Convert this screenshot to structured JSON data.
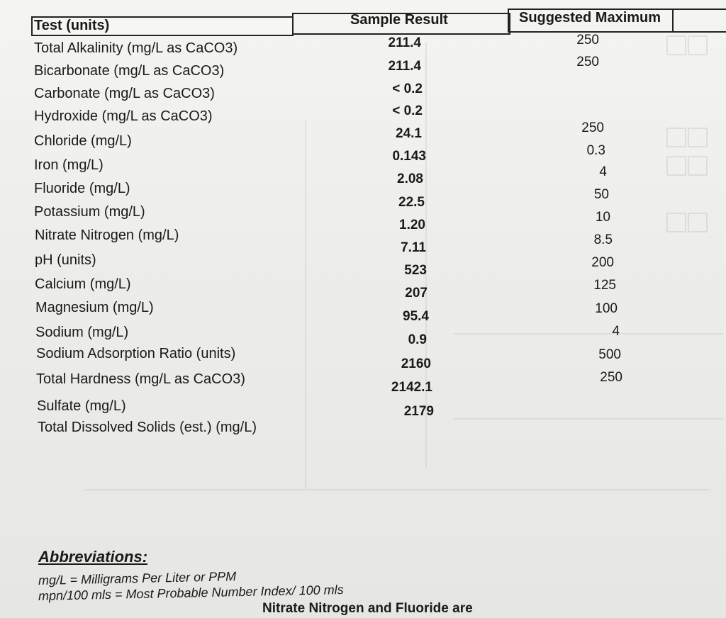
{
  "header": {
    "test": "Test (units)",
    "sample": "Sample Result",
    "maximum": "Suggested Maximum"
  },
  "rows": [
    {
      "name": "Total Alkalinity (mg/L as CaCO3)",
      "result": "211.4",
      "max": "250"
    },
    {
      "name": "Bicarbonate (mg/L as CaCO3)",
      "result": "211.4",
      "max": "250"
    },
    {
      "name": "Carbonate (mg/L as CaCO3)",
      "result": "< 0.2",
      "max": ""
    },
    {
      "name": "Hydroxide (mg/L as CaCO3)",
      "result": "< 0.2",
      "max": ""
    },
    {
      "name": "Chloride (mg/L)",
      "result": "24.1",
      "max": "250"
    },
    {
      "name": "Iron (mg/L)",
      "result": "0.143",
      "max": "0.3"
    },
    {
      "name": "Fluoride (mg/L)",
      "result": "2.08",
      "max": "4"
    },
    {
      "name": "Potassium (mg/L)",
      "result": "22.5",
      "max": "50"
    },
    {
      "name": "Nitrate Nitrogen (mg/L)",
      "result": "1.20",
      "max": "10"
    },
    {
      "name": "pH (units)",
      "result": "7.11",
      "max": "8.5"
    },
    {
      "name": "Calcium (mg/L)",
      "result": "523",
      "max": "200"
    },
    {
      "name": "Magnesium (mg/L)",
      "result": "207",
      "max": "125"
    },
    {
      "name": "Sodium (mg/L)",
      "result": "95.4",
      "max": "100"
    },
    {
      "name": "Sodium Adsorption Ratio (units)",
      "result": "0.9",
      "max": "4"
    },
    {
      "name": "Total Hardness (mg/L as CaCO3)",
      "result": "2160",
      "max": "500"
    },
    {
      "name": "Sulfate (mg/L)",
      "result": "2142.1",
      "max": "250"
    },
    {
      "name": "Total Dissolved Solids (est.) (mg/L)",
      "result": "2179",
      "max": ""
    }
  ],
  "abbreviations": {
    "title": "Abbreviations:",
    "line1": "mg/L = Milligrams Per Liter or PPM",
    "line2": "mpn/100 mls = Most Probable Number Index/ 100 mls"
  },
  "footer_fragment": "Nitrate Nitrogen and Fluoride are"
}
